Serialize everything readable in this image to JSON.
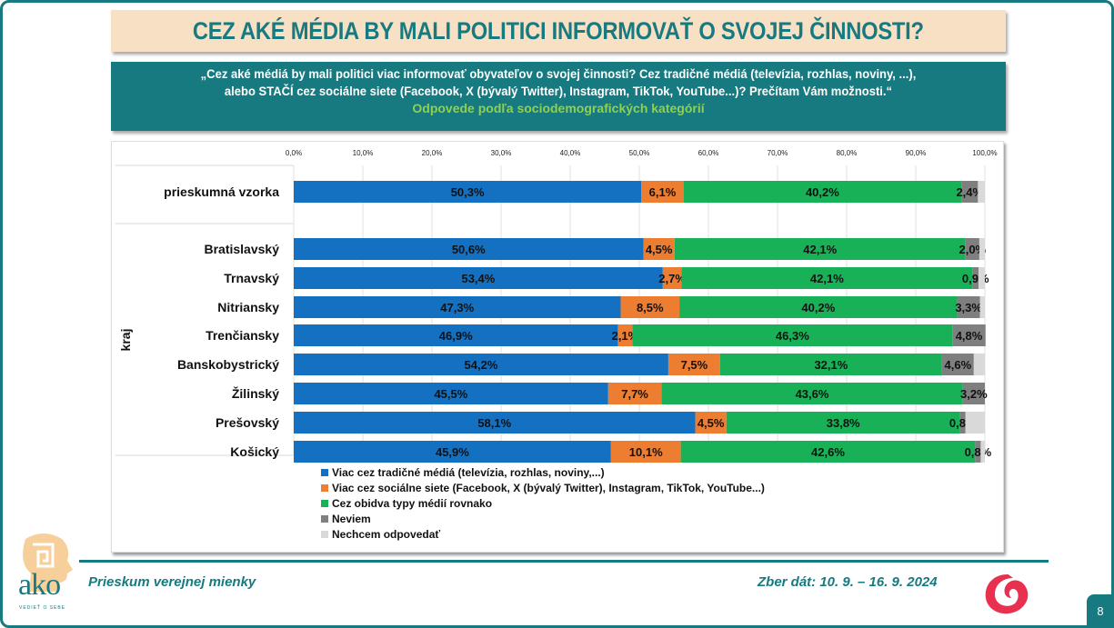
{
  "header": {
    "title": "CEZ AKÉ MÉDIA BY MALI POLITICI INFORMOVAŤ O SVOJEJ ČINNOSTI?",
    "question_line1": "„Cez aké médiá by mali politici viac informovať obyvateľov o svojej činnosti? Cez tradičné médiá (televízia, rozhlas, noviny, ...),",
    "question_line2": "alebo STAČÍ cez sociálne siete (Facebook, X (bývalý Twitter), Instagram, TikTok, YouTube...)? Prečítam Vám možnosti.“",
    "subtitle": "Odpovede podľa sociodemografických kategórií"
  },
  "footer": {
    "left_text": "Prieskum verejnej mienky",
    "right_text": "Zber dát: 10. 9. – 16. 9. 2024",
    "page_number": "8",
    "logo_text": "ako",
    "logo_tagline": "VEDIEŤ O SEBE"
  },
  "colors": {
    "teal": "#167a80",
    "traditional": "#1470c0",
    "social": "#ed7d31",
    "both": "#19b157",
    "dontknow": "#7f7f7f",
    "refuse": "#d9d9d9"
  },
  "chart_data": {
    "type": "bar",
    "orientation": "horizontal",
    "stacked": "100%",
    "xlim": [
      0,
      100
    ],
    "x_ticks": [
      "0,0%",
      "10,0%",
      "20,0%",
      "30,0%",
      "40,0%",
      "50,0%",
      "60,0%",
      "70,0%",
      "80,0%",
      "90,0%",
      "100,0%"
    ],
    "group_label": "kraj",
    "categories": [
      "prieskumná vzorka",
      "Bratislavský",
      "Trnavský",
      "Nitriansky",
      "Trenčiansky",
      "Banskobystrický",
      "Žilinský",
      "Prešovský",
      "Košický"
    ],
    "series": [
      {
        "name": "Viac cez tradičné médiá (televízia, rozhlas, noviny,...)",
        "color": "#1470c0",
        "values": [
          50.3,
          50.6,
          53.4,
          47.3,
          46.9,
          54.2,
          45.5,
          58.1,
          45.9
        ],
        "labels": [
          "50,3%",
          "50,6%",
          "53,4%",
          "47,3%",
          "46,9%",
          "54,2%",
          "45,5%",
          "58,1%",
          "45,9%"
        ]
      },
      {
        "name": "Viac cez sociálne siete (Facebook, X (bývalý Twitter), Instagram, TikTok, YouTube...)",
        "color": "#ed7d31",
        "values": [
          6.1,
          4.5,
          2.7,
          8.5,
          2.1,
          7.5,
          7.7,
          4.5,
          10.1
        ],
        "labels": [
          "6,1%",
          "4,5%",
          "2,7%",
          "8,5%",
          "2,1%",
          "7,5%",
          "7,7%",
          "4,5%",
          "10,1%"
        ]
      },
      {
        "name": "Cez obidva typy médií rovnako",
        "color": "#19b157",
        "values": [
          40.2,
          42.1,
          42.1,
          40.2,
          46.3,
          32.1,
          43.6,
          33.8,
          42.6
        ],
        "labels": [
          "40,2%",
          "42,1%",
          "42,1%",
          "40,2%",
          "46,3%",
          "32,1%",
          "43,6%",
          "33,8%",
          "42,6%"
        ]
      },
      {
        "name": "Neviem",
        "color": "#7f7f7f",
        "values": [
          2.4,
          2.0,
          0.9,
          3.3,
          4.8,
          4.6,
          3.2,
          0.8,
          0.8
        ],
        "labels": [
          "2,4%",
          "2,0%",
          "0,9%",
          "3,3%",
          "4,8%",
          "4,6%",
          "3,2%",
          "0,8%",
          "0,8%"
        ]
      },
      {
        "name": "Nechcem odpovedať",
        "color": "#d9d9d9",
        "values": [
          1.0,
          0.8,
          0.9,
          0.7,
          0.0,
          1.6,
          0.0,
          2.8,
          0.6
        ],
        "labels": [
          "",
          "",
          "",
          "",
          "",
          "",
          "",
          "",
          ""
        ]
      }
    ],
    "legend_position": "bottom",
    "grid": true
  }
}
